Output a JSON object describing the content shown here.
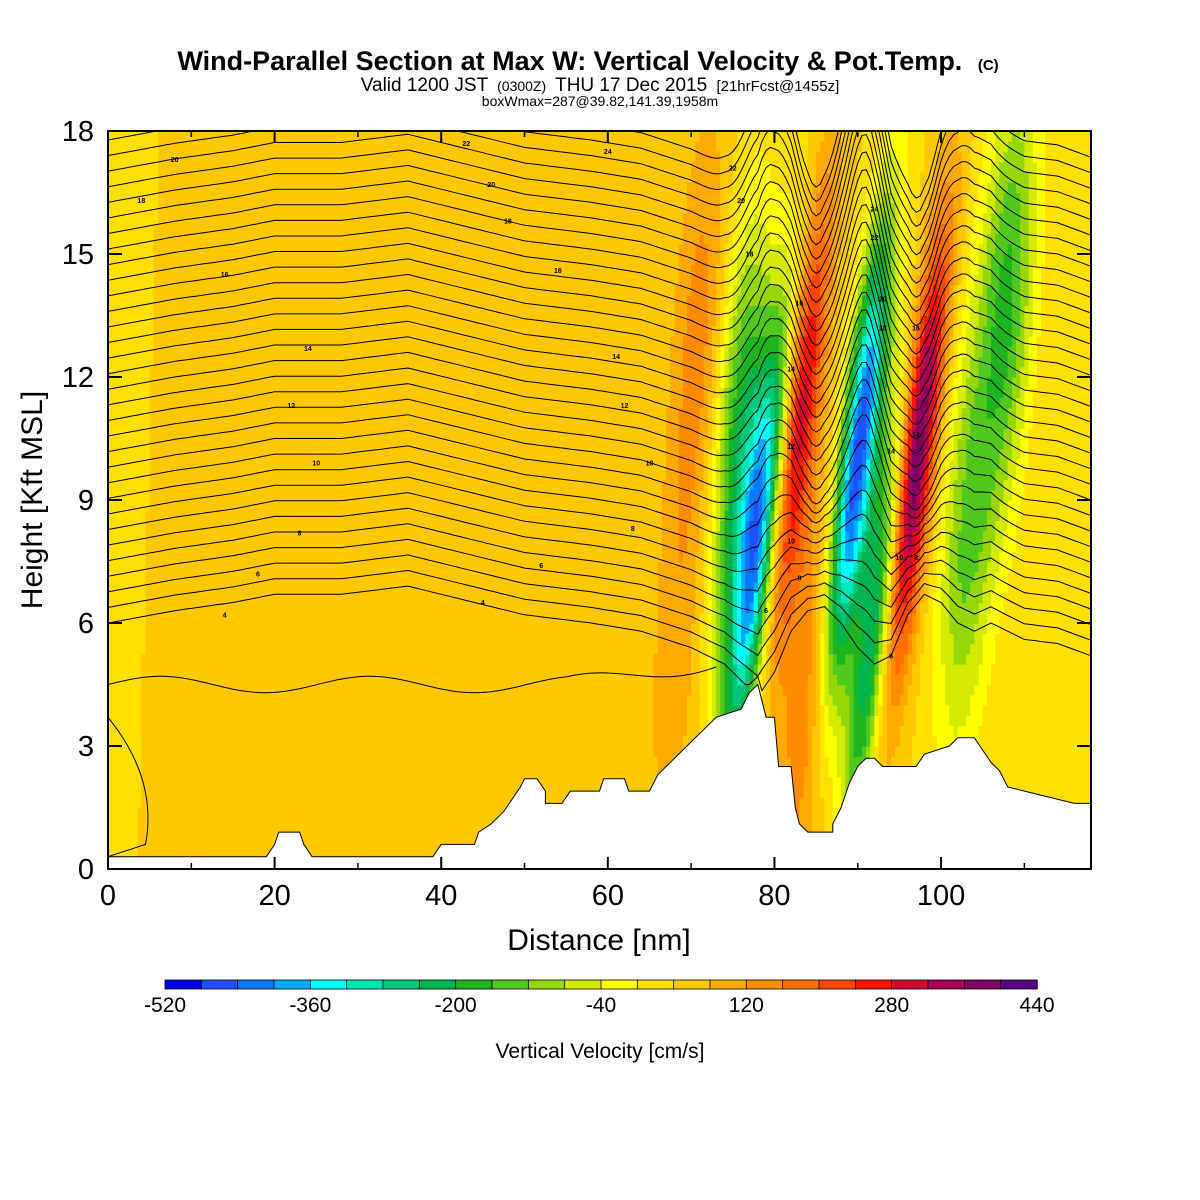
{
  "chart_data": {
    "type": "heatmap",
    "title": "Wind-Parallel Section at Max W: Vertical Velocity & Pot.Temp.",
    "title_suffix": "(C)",
    "subtitle_parts": [
      "Valid 1200 JST",
      "(0300Z)",
      "THU 17 Dec 2015",
      "[21hrFcst@1455z]"
    ],
    "subtitle2": "boxWmax=287@39.82,141.39,1958m",
    "xlabel": "Distance [nm]",
    "ylabel": "Height [Kft MSL]",
    "xlim": [
      0,
      118
    ],
    "ylim": [
      0,
      18
    ],
    "x_ticks": [
      "0",
      "20",
      "40",
      "60",
      "80",
      "100"
    ],
    "y_ticks": [
      "0",
      "3",
      "6",
      "9",
      "12",
      "15",
      "18"
    ],
    "colorbar": {
      "title": "Vertical Velocity [cm/s]",
      "min": -520,
      "max": 440,
      "step": 40,
      "tick_labels": [
        "-520",
        "-360",
        "-200",
        "-40",
        "120",
        "280",
        "440"
      ],
      "colors": [
        "#0000e6",
        "#1e50ff",
        "#0a78ff",
        "#00aaff",
        "#00ffff",
        "#00e6b4",
        "#00c878",
        "#00b450",
        "#1eb41e",
        "#50c81e",
        "#96d70a",
        "#d2eb00",
        "#ffff00",
        "#ffe100",
        "#ffc800",
        "#ffaa00",
        "#ff8c00",
        "#ff6e00",
        "#ff4600",
        "#ff1400",
        "#d20a32",
        "#aa0055",
        "#820064",
        "#5a0082"
      ]
    },
    "w_features": [
      {
        "x": 0,
        "z": 9,
        "w": 20
      },
      {
        "x": 10,
        "z": 12,
        "w": 60
      },
      {
        "x": 30,
        "z": 10,
        "w": 60
      },
      {
        "x": 55,
        "z": 5,
        "w": 60
      },
      {
        "x": 68,
        "z": 5,
        "w": 100
      },
      {
        "x": 71,
        "z": 13,
        "w": 140
      },
      {
        "x": 76,
        "z": 10,
        "w": -220
      },
      {
        "x": 78,
        "z": 8,
        "w": -330
      },
      {
        "x": 83,
        "z": 11,
        "w": 300
      },
      {
        "x": 84,
        "z": 4,
        "w": 160
      },
      {
        "x": 90,
        "z": 10,
        "w": -470
      },
      {
        "x": 92,
        "z": 6,
        "w": -260
      },
      {
        "x": 97,
        "z": 10,
        "w": 420
      },
      {
        "x": 103,
        "z": 8,
        "w": -120
      },
      {
        "x": 108,
        "z": 14,
        "w": -160
      }
    ],
    "terrain": [
      [
        0,
        0.3
      ],
      [
        19,
        0.3
      ],
      [
        20,
        0.6
      ],
      [
        20.5,
        0.9
      ],
      [
        23,
        0.9
      ],
      [
        23.5,
        0.6
      ],
      [
        24.5,
        0.3
      ],
      [
        39,
        0.3
      ],
      [
        40,
        0.6
      ],
      [
        44,
        0.6
      ],
      [
        44.5,
        0.9
      ],
      [
        46,
        1.1
      ],
      [
        47.5,
        1.4
      ],
      [
        48.5,
        1.7
      ],
      [
        49.5,
        2.0
      ],
      [
        50,
        2.2
      ],
      [
        51.5,
        2.2
      ],
      [
        52.5,
        1.9
      ],
      [
        52.5,
        1.6
      ],
      [
        54.5,
        1.6
      ],
      [
        55.5,
        1.9
      ],
      [
        59,
        1.9
      ],
      [
        59.5,
        2.2
      ],
      [
        62,
        2.2
      ],
      [
        62.5,
        1.9
      ],
      [
        65,
        1.9
      ],
      [
        66,
        2.3
      ],
      [
        67,
        2.5
      ],
      [
        68,
        2.7
      ],
      [
        69,
        2.9
      ],
      [
        70,
        3.1
      ],
      [
        71,
        3.3
      ],
      [
        72,
        3.5
      ],
      [
        73,
        3.7
      ],
      [
        76,
        3.9
      ],
      [
        77,
        4.3
      ],
      [
        78,
        4.5
      ],
      [
        79,
        3.7
      ],
      [
        80,
        3.7
      ],
      [
        80.5,
        2.5
      ],
      [
        82,
        2.5
      ],
      [
        82.5,
        1.5
      ],
      [
        83,
        1.1
      ],
      [
        84,
        0.9
      ],
      [
        87,
        0.9
      ],
      [
        87,
        1.1
      ],
      [
        88,
        1.5
      ],
      [
        89,
        2.1
      ],
      [
        90,
        2.5
      ],
      [
        91,
        2.7
      ],
      [
        92,
        2.7
      ],
      [
        93,
        2.5
      ],
      [
        97,
        2.5
      ],
      [
        98,
        2.8
      ],
      [
        101,
        3.0
      ],
      [
        102,
        3.2
      ],
      [
        104,
        3.2
      ],
      [
        105,
        2.9
      ],
      [
        106,
        2.6
      ],
      [
        107,
        2.4
      ],
      [
        108,
        2.0
      ],
      [
        110,
        1.9
      ],
      [
        116,
        1.6
      ],
      [
        118,
        1.6
      ]
    ],
    "theta_labels": [
      {
        "text": "20",
        "x": 8,
        "z": 17.3
      },
      {
        "text": "18",
        "x": 4,
        "z": 16.3
      },
      {
        "text": "16",
        "x": 14,
        "z": 14.5
      },
      {
        "text": "14",
        "x": 24,
        "z": 12.7
      },
      {
        "text": "12",
        "x": 22,
        "z": 11.3
      },
      {
        "text": "10",
        "x": 25,
        "z": 9.9
      },
      {
        "text": "8",
        "x": 23,
        "z": 8.2
      },
      {
        "text": "6",
        "x": 18,
        "z": 7.2
      },
      {
        "text": "4",
        "x": 14,
        "z": 6.2
      },
      {
        "text": "22",
        "x": 43,
        "z": 17.7
      },
      {
        "text": "20",
        "x": 46,
        "z": 16.7
      },
      {
        "text": "18",
        "x": 48,
        "z": 15.8
      },
      {
        "text": "16",
        "x": 54,
        "z": 14.6
      },
      {
        "text": "14",
        "x": 61,
        "z": 12.5
      },
      {
        "text": "12",
        "x": 62,
        "z": 11.3
      },
      {
        "text": "10",
        "x": 65,
        "z": 9.9
      },
      {
        "text": "8",
        "x": 63,
        "z": 8.3
      },
      {
        "text": "6",
        "x": 52,
        "z": 7.4
      },
      {
        "text": "4",
        "x": 45,
        "z": 6.5
      },
      {
        "text": "24",
        "x": 60,
        "z": 17.5
      },
      {
        "text": "22",
        "x": 75,
        "z": 17.1
      },
      {
        "text": "20",
        "x": 76,
        "z": 16.3
      },
      {
        "text": "18",
        "x": 77,
        "z": 15.0
      },
      {
        "text": "16",
        "x": 83,
        "z": 13.8
      },
      {
        "text": "14",
        "x": 82,
        "z": 12.2
      },
      {
        "text": "12",
        "x": 82,
        "z": 10.3
      },
      {
        "text": "10",
        "x": 82,
        "z": 8.0
      },
      {
        "text": "8",
        "x": 83,
        "z": 7.1
      },
      {
        "text": "6",
        "x": 79,
        "z": 6.3
      },
      {
        "text": "24",
        "x": 92,
        "z": 16.1
      },
      {
        "text": "22",
        "x": 92,
        "z": 15.4
      },
      {
        "text": "20",
        "x": 93,
        "z": 13.9
      },
      {
        "text": "18",
        "x": 93,
        "z": 13.2
      },
      {
        "text": "16",
        "x": 97,
        "z": 13.2
      },
      {
        "text": "14",
        "x": 94,
        "z": 10.2
      },
      {
        "text": "12",
        "x": 97,
        "z": 10.6
      },
      {
        "text": "10",
        "x": 95,
        "z": 7.6
      },
      {
        "text": "8",
        "x": 97,
        "z": 7.6
      },
      {
        "text": "6",
        "x": 94,
        "z": 5.2
      }
    ]
  }
}
